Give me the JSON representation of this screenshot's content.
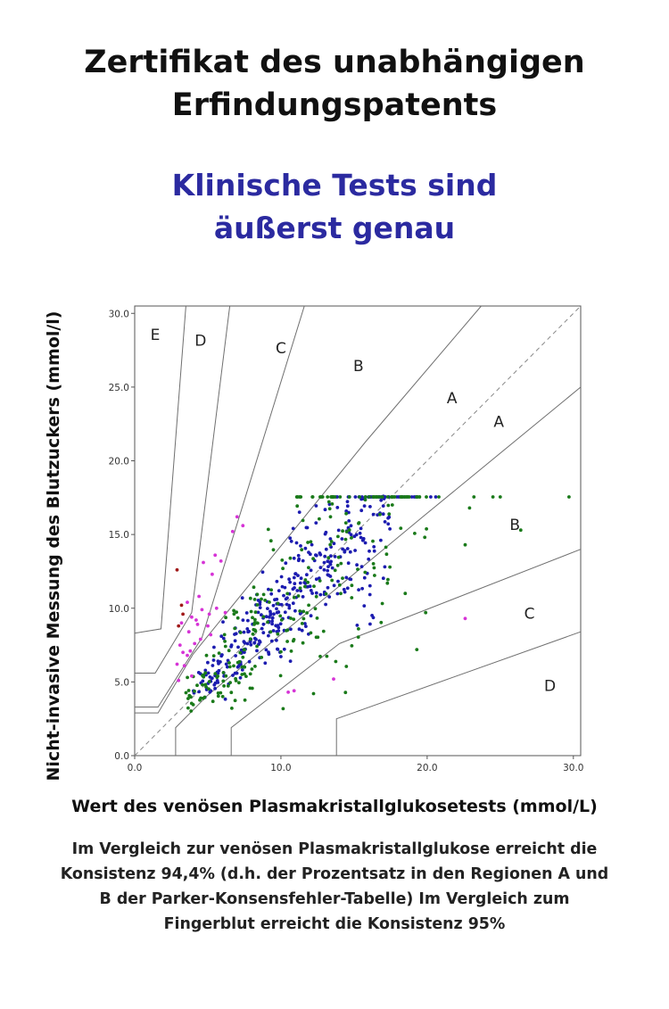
{
  "heading": {
    "line1": "Zertifikat des unabhängigen",
    "line2": "Erfindungspatents"
  },
  "subheading": {
    "line1": "Klinische Tests sind",
    "line2": "äußerst genau",
    "color": "#2b2aa0"
  },
  "caption": {
    "line1": "Im Vergleich zur venösen Plasmakristallglukose erreicht die",
    "line2": "Konsistenz 94,4% (d.h. der Prozentsatz in den Regionen A und",
    "line3": "B der Parker-Konsensfehler-Tabelle) Im Vergleich zum",
    "line4": "Fingerblut erreicht die Konsistenz 95%"
  },
  "chart_data": {
    "type": "scatter",
    "title": "",
    "xlabel": "Wert des venösen Plasmakristallglukosetests (mmol/L)",
    "ylabel": "Nicht-invasive Messung des Blutzuckers (mmol/l)",
    "xlim": [
      0,
      30.5
    ],
    "ylim": [
      0,
      30.5
    ],
    "xticks": [
      "0.0",
      "10.0",
      "20.0",
      "30.0"
    ],
    "yticks": [
      "0.0",
      "5.0",
      "10.0",
      "15.0",
      "20.0",
      "25.0",
      "30.0"
    ],
    "xtick_values": [
      0,
      10,
      20,
      30
    ],
    "ytick_values": [
      0,
      5,
      10,
      15,
      20,
      25,
      30
    ],
    "identity_line": true,
    "zone_boundaries": [
      [
        [
          0,
          8.3
        ],
        [
          1.8,
          8.6
        ],
        [
          3.5,
          30.5
        ]
      ],
      [
        [
          0,
          5.6
        ],
        [
          1.4,
          5.6
        ],
        [
          3.9,
          9.7
        ],
        [
          6.5,
          30.5
        ]
      ],
      [
        [
          0,
          3.3
        ],
        [
          1.6,
          3.3
        ],
        [
          4.6,
          8.0
        ],
        [
          11.6,
          30.5
        ]
      ],
      [
        [
          0,
          2.9
        ],
        [
          1.6,
          2.9
        ],
        [
          4.0,
          6.9
        ],
        [
          15.8,
          21.3
        ],
        [
          23.7,
          30.5
        ]
      ],
      [
        [
          2.8,
          0
        ],
        [
          2.8,
          1.9
        ],
        [
          5.0,
          4.1
        ],
        [
          19.7,
          16.2
        ],
        [
          30.5,
          25.0
        ]
      ],
      [
        [
          6.6,
          0
        ],
        [
          6.6,
          1.9
        ],
        [
          14.0,
          7.6
        ],
        [
          30.5,
          14.0
        ]
      ],
      [
        [
          13.8,
          0
        ],
        [
          13.8,
          2.5
        ],
        [
          30.5,
          8.4
        ]
      ]
    ],
    "zone_labels": [
      {
        "text": "E",
        "x": 1.4,
        "y": 28.5
      },
      {
        "text": "D",
        "x": 4.5,
        "y": 28.1
      },
      {
        "text": "C",
        "x": 10.0,
        "y": 27.6
      },
      {
        "text": "B",
        "x": 15.3,
        "y": 26.4
      },
      {
        "text": "A",
        "x": 21.7,
        "y": 24.2
      },
      {
        "text": "A",
        "x": 24.9,
        "y": 22.6
      },
      {
        "text": "B",
        "x": 26.0,
        "y": 15.6
      },
      {
        "text": "C",
        "x": 27.0,
        "y": 9.6
      },
      {
        "text": "D",
        "x": 28.4,
        "y": 4.7
      }
    ],
    "series": [
      {
        "region": "A",
        "color": "#1c1cb0",
        "count": 360,
        "generated": true
      },
      {
        "region": "B",
        "color": "#1a7a1a",
        "count": 280,
        "generated": true
      },
      {
        "region": "C",
        "color": "#d633d6",
        "count": 34,
        "generated": true
      },
      {
        "region": "D",
        "color": "#a11a1a",
        "count": 4,
        "generated": true
      }
    ]
  }
}
